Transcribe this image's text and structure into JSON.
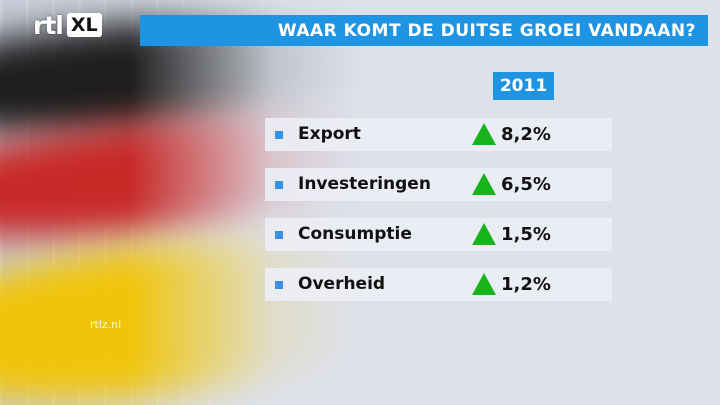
{
  "channel": {
    "logo_text": "rtl",
    "logo_suffix": "XL",
    "url": "rtlz.nl"
  },
  "title": "WAAR KOMT DE DUITSE GROEI VANDAAN?",
  "year": "2011",
  "rows": [
    {
      "label": "Export",
      "value": "8,2%",
      "trend_icon": "up-triangle-icon"
    },
    {
      "label": "Investeringen",
      "value": "6,5%",
      "trend_icon": "up-triangle-icon"
    },
    {
      "label": "Consumptie",
      "value": "1,5%",
      "trend_icon": "up-triangle-icon"
    },
    {
      "label": "Overheid",
      "value": "1,2%",
      "trend_icon": "up-triangle-icon"
    }
  ],
  "colors": {
    "accent": "#1e94e3",
    "bullet": "#3a8fe2",
    "up": "#17b51a",
    "flag_black": "#151515",
    "flag_red": "#c8201e",
    "flag_gold": "#f2c400"
  }
}
